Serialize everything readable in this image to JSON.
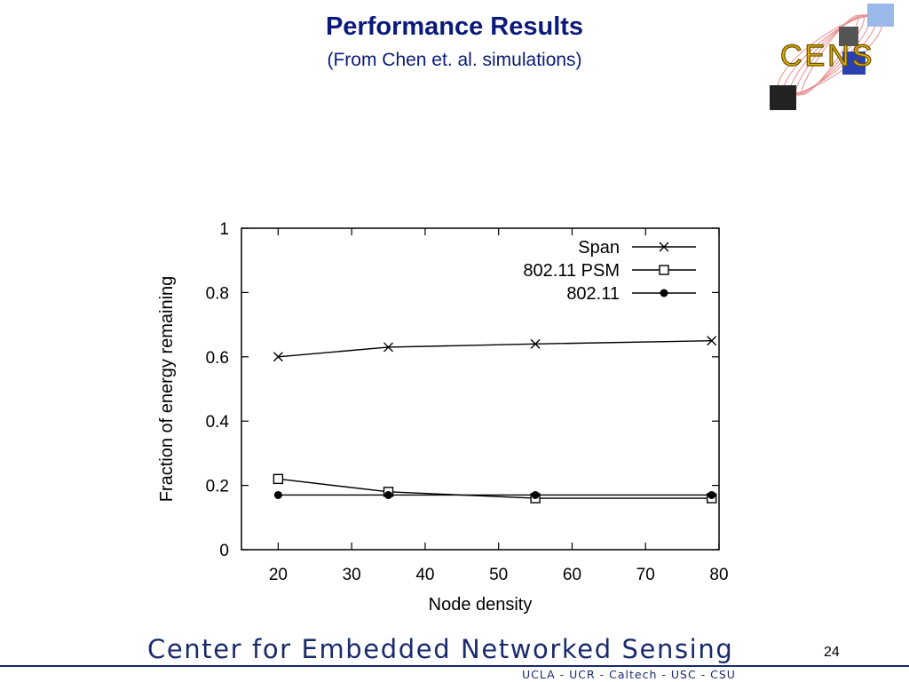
{
  "slide": {
    "title": "Performance Results",
    "subtitle": "(From Chen et. al. simulations)",
    "page_number": "24"
  },
  "logo": {
    "text": "CENS"
  },
  "footer": {
    "organization": "Center for Embedded Networked Sensing",
    "campuses": "UCLA - UCR - Caltech - USC - CSU"
  },
  "colors": {
    "title": "#0b1a7a",
    "footer": "#1a2a6c"
  },
  "chart_data": {
    "type": "line",
    "title": "",
    "xlabel": "Node density",
    "ylabel": "Fraction of energy remaining",
    "xlim": [
      15,
      80
    ],
    "ylim": [
      0,
      1
    ],
    "xticks": [
      "20",
      "30",
      "40",
      "50",
      "60",
      "70",
      "80"
    ],
    "yticks": [
      "0",
      "0.2",
      "0.4",
      "0.6",
      "0.8",
      "1"
    ],
    "grid": false,
    "legend_position": "top-right",
    "series": [
      {
        "name": "Span",
        "marker": "x",
        "x": [
          20,
          35,
          55,
          79
        ],
        "y": [
          0.6,
          0.63,
          0.64,
          0.65
        ]
      },
      {
        "name": "802.11 PSM",
        "marker": "open-square",
        "x": [
          20,
          35,
          55,
          79
        ],
        "y": [
          0.22,
          0.18,
          0.16,
          0.16
        ]
      },
      {
        "name": "802.11",
        "marker": "filled-circle",
        "x": [
          20,
          35,
          55,
          79
        ],
        "y": [
          0.17,
          0.17,
          0.17,
          0.17
        ]
      }
    ]
  }
}
